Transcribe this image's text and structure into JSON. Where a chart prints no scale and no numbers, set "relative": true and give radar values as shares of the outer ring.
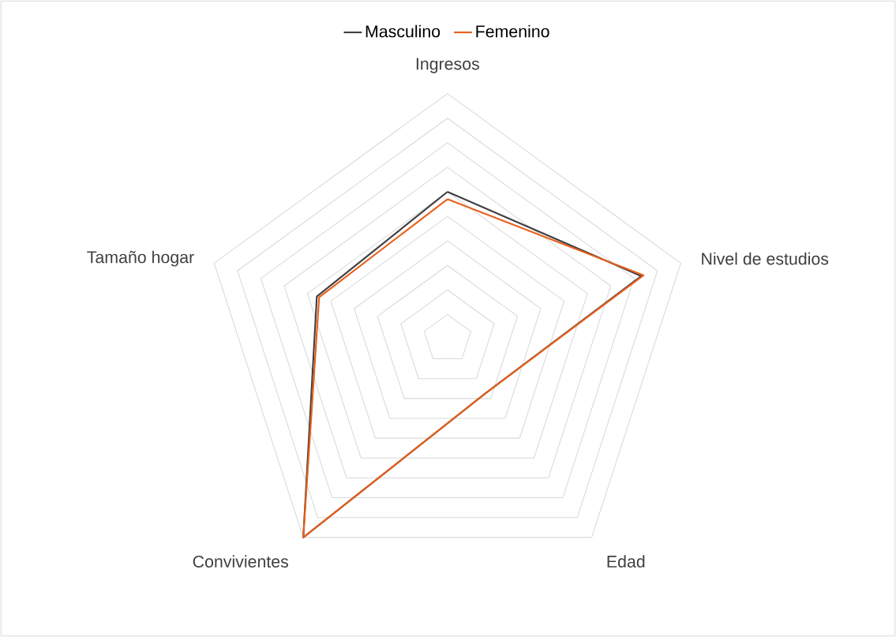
{
  "chart_data": {
    "type": "radar",
    "relative": true,
    "grid": true,
    "legend": "top",
    "categories": [
      "Ingresos",
      "Nivel de estudios",
      "Edad",
      "Convivientes",
      "Tamaño hogar"
    ],
    "series": [
      {
        "name": "Masculino",
        "color": "#404040",
        "values": [
          0.6,
          0.83,
          0.27,
          1.0,
          0.56
        ]
      },
      {
        "name": "Femenino",
        "color": "#e8601c",
        "values": [
          0.57,
          0.84,
          0.27,
          1.0,
          0.55
        ]
      }
    ]
  }
}
